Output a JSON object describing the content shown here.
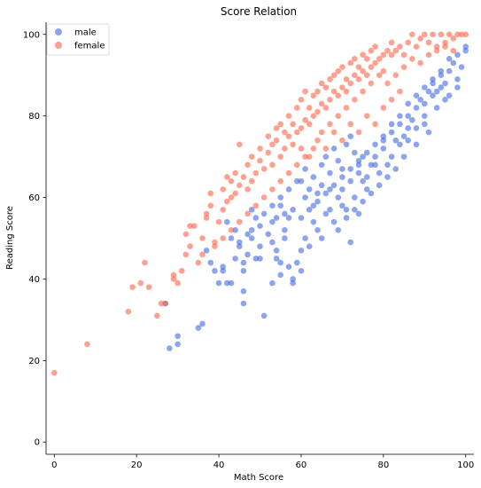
{
  "chart_data": {
    "type": "scatter",
    "title": "Score Relation",
    "xlabel": "Math Score",
    "ylabel": "Reading Score",
    "xlim": [
      -2,
      102
    ],
    "ylim": [
      -3,
      103
    ],
    "x_ticks": [
      0,
      20,
      40,
      60,
      80,
      100
    ],
    "y_ticks": [
      0,
      20,
      40,
      60,
      80,
      100
    ],
    "grid": false,
    "legend_position": "top-left",
    "point_alpha": 0.6,
    "series": [
      {
        "name": "male",
        "color": "#4169E1",
        "points": [
          [
            27,
            34
          ],
          [
            28,
            23
          ],
          [
            30,
            24
          ],
          [
            30,
            26
          ],
          [
            35,
            28
          ],
          [
            36,
            29
          ],
          [
            40,
            39
          ],
          [
            41,
            42
          ],
          [
            41,
            43
          ],
          [
            42,
            39
          ],
          [
            43,
            39
          ],
          [
            44,
            45
          ],
          [
            45,
            48
          ],
          [
            46,
            34
          ],
          [
            46,
            37
          ],
          [
            46,
            42
          ],
          [
            46,
            44
          ],
          [
            47,
            46
          ],
          [
            48,
            52
          ],
          [
            48,
            50
          ],
          [
            49,
            45
          ],
          [
            50,
            45
          ],
          [
            50,
            48
          ],
          [
            51,
            31
          ],
          [
            53,
            39
          ],
          [
            53,
            49
          ],
          [
            54,
            47
          ],
          [
            54,
            45
          ],
          [
            55,
            41
          ],
          [
            55,
            44
          ],
          [
            56,
            50
          ],
          [
            56,
            52
          ],
          [
            56,
            56
          ],
          [
            57,
            43
          ],
          [
            58,
            39
          ],
          [
            58,
            40
          ],
          [
            59,
            44
          ],
          [
            60,
            42
          ],
          [
            60,
            47
          ],
          [
            61,
            50
          ],
          [
            62,
            48
          ],
          [
            63,
            54
          ],
          [
            64,
            52
          ],
          [
            65,
            50
          ],
          [
            66,
            56
          ],
          [
            67,
            57
          ],
          [
            68,
            54
          ],
          [
            69,
            52
          ],
          [
            70,
            58
          ],
          [
            71,
            57
          ],
          [
            72,
            49
          ],
          [
            73,
            60
          ],
          [
            74,
            56
          ],
          [
            75,
            64
          ],
          [
            76,
            62
          ],
          [
            77,
            68
          ],
          [
            78,
            70
          ],
          [
            79,
            66
          ],
          [
            80,
            72
          ],
          [
            81,
            68
          ],
          [
            82,
            70
          ],
          [
            83,
            74
          ],
          [
            84,
            73
          ],
          [
            85,
            75
          ],
          [
            86,
            77
          ],
          [
            87,
            79
          ],
          [
            88,
            82
          ],
          [
            89,
            84
          ],
          [
            90,
            80
          ],
          [
            91,
            86
          ],
          [
            92,
            88
          ],
          [
            93,
            86
          ],
          [
            94,
            90
          ],
          [
            95,
            88
          ],
          [
            96,
            91
          ],
          [
            97,
            93
          ],
          [
            98,
            87
          ],
          [
            99,
            92
          ],
          [
            100,
            97
          ],
          [
            65,
            68
          ],
          [
            66,
            70
          ],
          [
            67,
            66
          ],
          [
            68,
            72
          ],
          [
            69,
            69
          ],
          [
            70,
            67
          ],
          [
            71,
            73
          ],
          [
            72,
            75
          ],
          [
            73,
            71
          ],
          [
            74,
            68
          ],
          [
            75,
            70
          ],
          [
            60,
            64
          ],
          [
            61,
            60
          ],
          [
            62,
            62
          ],
          [
            63,
            58
          ],
          [
            64,
            61
          ],
          [
            58,
            57
          ],
          [
            57,
            55
          ],
          [
            55,
            58
          ],
          [
            54,
            55
          ],
          [
            53,
            54
          ],
          [
            52,
            51
          ],
          [
            51,
            56
          ],
          [
            50,
            53
          ],
          [
            49,
            55
          ],
          [
            48,
            57
          ],
          [
            47,
            51
          ],
          [
            70,
            62
          ],
          [
            72,
            64
          ],
          [
            74,
            66
          ],
          [
            76,
            65
          ],
          [
            78,
            68
          ],
          [
            80,
            74
          ],
          [
            82,
            76
          ],
          [
            84,
            78
          ],
          [
            86,
            80
          ],
          [
            88,
            77
          ],
          [
            90,
            83
          ],
          [
            92,
            85
          ],
          [
            94,
            87
          ],
          [
            96,
            85
          ],
          [
            98,
            89
          ],
          [
            100,
            96
          ],
          [
            86,
            74
          ],
          [
            88,
            73
          ],
          [
            90,
            78
          ],
          [
            91,
            76
          ],
          [
            93,
            82
          ],
          [
            95,
            84
          ],
          [
            85,
            70
          ],
          [
            83,
            67
          ],
          [
            81,
            65
          ],
          [
            79,
            63
          ],
          [
            77,
            61
          ],
          [
            75,
            59
          ],
          [
            73,
            57
          ],
          [
            71,
            55
          ],
          [
            69,
            60
          ],
          [
            67,
            62
          ],
          [
            65,
            63
          ],
          [
            63,
            65
          ],
          [
            61,
            67
          ],
          [
            59,
            64
          ],
          [
            57,
            62
          ],
          [
            55,
            60
          ],
          [
            53,
            58
          ],
          [
            45,
            49
          ],
          [
            44,
            52
          ],
          [
            42,
            54
          ],
          [
            43,
            50
          ],
          [
            39,
            42
          ],
          [
            38,
            44
          ],
          [
            37,
            47
          ],
          [
            60,
            55
          ],
          [
            62,
            57
          ],
          [
            64,
            59
          ],
          [
            66,
            61
          ],
          [
            68,
            63
          ],
          [
            70,
            65
          ],
          [
            72,
            67
          ],
          [
            74,
            69
          ],
          [
            76,
            71
          ],
          [
            78,
            73
          ],
          [
            80,
            75
          ],
          [
            82,
            78
          ],
          [
            84,
            80
          ],
          [
            86,
            83
          ],
          [
            88,
            85
          ],
          [
            90,
            87
          ],
          [
            92,
            89
          ],
          [
            94,
            91
          ],
          [
            96,
            94
          ],
          [
            98,
            95
          ]
        ]
      },
      {
        "name": "female",
        "color": "#FF6347",
        "points": [
          [
            0,
            17
          ],
          [
            8,
            24
          ],
          [
            18,
            32
          ],
          [
            19,
            38
          ],
          [
            21,
            39
          ],
          [
            22,
            44
          ],
          [
            23,
            38
          ],
          [
            25,
            31
          ],
          [
            26,
            34
          ],
          [
            27,
            34
          ],
          [
            29,
            40
          ],
          [
            29,
            41
          ],
          [
            30,
            39
          ],
          [
            31,
            42
          ],
          [
            32,
            46
          ],
          [
            32,
            51
          ],
          [
            33,
            48
          ],
          [
            33,
            53
          ],
          [
            34,
            53
          ],
          [
            35,
            44
          ],
          [
            36,
            46
          ],
          [
            36,
            50
          ],
          [
            37,
            55
          ],
          [
            37,
            56
          ],
          [
            38,
            58
          ],
          [
            38,
            61
          ],
          [
            39,
            49
          ],
          [
            40,
            54
          ],
          [
            41,
            57
          ],
          [
            41,
            62
          ],
          [
            42,
            65
          ],
          [
            42,
            59
          ],
          [
            43,
            60
          ],
          [
            43,
            64
          ],
          [
            44,
            61
          ],
          [
            44,
            66
          ],
          [
            45,
            63
          ],
          [
            45,
            73
          ],
          [
            46,
            65
          ],
          [
            47,
            68
          ],
          [
            47,
            62
          ],
          [
            48,
            70
          ],
          [
            48,
            64
          ],
          [
            49,
            66
          ],
          [
            50,
            69
          ],
          [
            50,
            72
          ],
          [
            51,
            67
          ],
          [
            52,
            71
          ],
          [
            52,
            75
          ],
          [
            53,
            68
          ],
          [
            53,
            73
          ],
          [
            54,
            74
          ],
          [
            54,
            77
          ],
          [
            55,
            70
          ],
          [
            55,
            78
          ],
          [
            56,
            72
          ],
          [
            56,
            76
          ],
          [
            57,
            75
          ],
          [
            57,
            80
          ],
          [
            58,
            73
          ],
          [
            58,
            78
          ],
          [
            59,
            76
          ],
          [
            59,
            82
          ],
          [
            60,
            77
          ],
          [
            60,
            84
          ],
          [
            61,
            79
          ],
          [
            61,
            86
          ],
          [
            62,
            78
          ],
          [
            62,
            82
          ],
          [
            63,
            80
          ],
          [
            63,
            85
          ],
          [
            64,
            81
          ],
          [
            64,
            86
          ],
          [
            65,
            83
          ],
          [
            65,
            88
          ],
          [
            66,
            82
          ],
          [
            66,
            87
          ],
          [
            67,
            84
          ],
          [
            67,
            89
          ],
          [
            68,
            86
          ],
          [
            68,
            90
          ],
          [
            69,
            85
          ],
          [
            69,
            91
          ],
          [
            70,
            87
          ],
          [
            70,
            92
          ],
          [
            71,
            86
          ],
          [
            71,
            89
          ],
          [
            72,
            88
          ],
          [
            72,
            93
          ],
          [
            73,
            90
          ],
          [
            73,
            94
          ],
          [
            74,
            89
          ],
          [
            74,
            92
          ],
          [
            75,
            91
          ],
          [
            75,
            95
          ],
          [
            76,
            90
          ],
          [
            76,
            94
          ],
          [
            77,
            92
          ],
          [
            77,
            96
          ],
          [
            78,
            93
          ],
          [
            78,
            97
          ],
          [
            79,
            94
          ],
          [
            80,
            95
          ],
          [
            80,
            91
          ],
          [
            81,
            96
          ],
          [
            82,
            95
          ],
          [
            82,
            98
          ],
          [
            83,
            96
          ],
          [
            84,
            97
          ],
          [
            85,
            95
          ],
          [
            86,
            98
          ],
          [
            87,
            100
          ],
          [
            88,
            97
          ],
          [
            89,
            99
          ],
          [
            90,
            100
          ],
          [
            91,
            98
          ],
          [
            92,
            100
          ],
          [
            93,
            97
          ],
          [
            94,
            100
          ],
          [
            95,
            98
          ],
          [
            96,
            100
          ],
          [
            97,
            99
          ],
          [
            98,
            100
          ],
          [
            99,
            100
          ],
          [
            100,
            100
          ],
          [
            60,
            72
          ],
          [
            62,
            70
          ],
          [
            64,
            74
          ],
          [
            66,
            72
          ],
          [
            68,
            76
          ],
          [
            70,
            74
          ],
          [
            72,
            78
          ],
          [
            74,
            76
          ],
          [
            76,
            80
          ],
          [
            78,
            78
          ],
          [
            80,
            82
          ],
          [
            82,
            84
          ],
          [
            84,
            86
          ],
          [
            55,
            64
          ],
          [
            53,
            62
          ],
          [
            51,
            60
          ],
          [
            49,
            58
          ],
          [
            47,
            56
          ],
          [
            45,
            54
          ],
          [
            43,
            52
          ],
          [
            41,
            50
          ],
          [
            39,
            48
          ],
          [
            57,
            66
          ],
          [
            59,
            68
          ],
          [
            61,
            70
          ],
          [
            63,
            72
          ],
          [
            65,
            76
          ],
          [
            67,
            78
          ],
          [
            69,
            80
          ],
          [
            71,
            82
          ],
          [
            73,
            84
          ],
          [
            75,
            86
          ],
          [
            77,
            88
          ],
          [
            79,
            90
          ],
          [
            81,
            88
          ],
          [
            83,
            90
          ],
          [
            85,
            92
          ],
          [
            87,
            94
          ],
          [
            89,
            93
          ],
          [
            91,
            95
          ],
          [
            93,
            96
          ],
          [
            95,
            97
          ],
          [
            97,
            96
          ]
        ]
      }
    ]
  }
}
